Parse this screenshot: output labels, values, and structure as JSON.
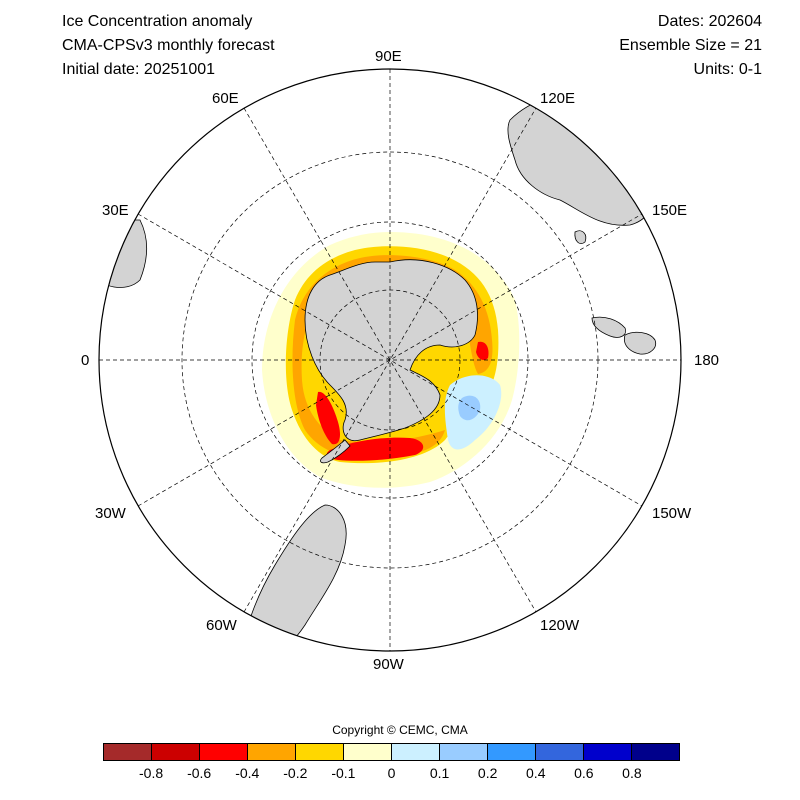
{
  "header": {
    "title": "Ice Concentration anomaly",
    "model": "CMA-CPSv3 monthly forecast",
    "initial_date": "Initial date: 20251001",
    "dates": "Dates: 202604",
    "ensemble": "Ensemble Size = 21",
    "units": "Units: 0-1"
  },
  "longitude_labels": {
    "lon_90e": "90E",
    "lon_120e": "120E",
    "lon_150e": "150E",
    "lon_180": "180",
    "lon_150w": "150W",
    "lon_120w": "120W",
    "lon_90w": "90W",
    "lon_60w": "60W",
    "lon_30w": "30W",
    "lon_0": "0",
    "lon_30e": "30E",
    "lon_60e": "60E"
  },
  "copyright": "Copyright © CEMC, CMA",
  "colorbar": {
    "colors": [
      "#a52a2a",
      "#cc0000",
      "#ff0000",
      "#ffa500",
      "#ffd700",
      "#ffffcc",
      "#ccf0ff",
      "#99ccff",
      "#3399ff",
      "#3366dd",
      "#0000cc",
      "#00008b"
    ],
    "ticks": [
      "-0.8",
      "-0.6",
      "-0.4",
      "-0.2",
      "-0.1",
      "0",
      "0.1",
      "0.2",
      "0.4",
      "0.6",
      "0.8"
    ]
  },
  "map_colors": {
    "land": "#d3d3d3",
    "ocean": "#ffffff",
    "neg_low": "#ffffcc",
    "neg_mid": "#ffd700",
    "neg_high": "#ffa500",
    "neg_strong": "#ff0000",
    "pos_low": "#ccf0ff",
    "pos_mid": "#99ccff"
  }
}
